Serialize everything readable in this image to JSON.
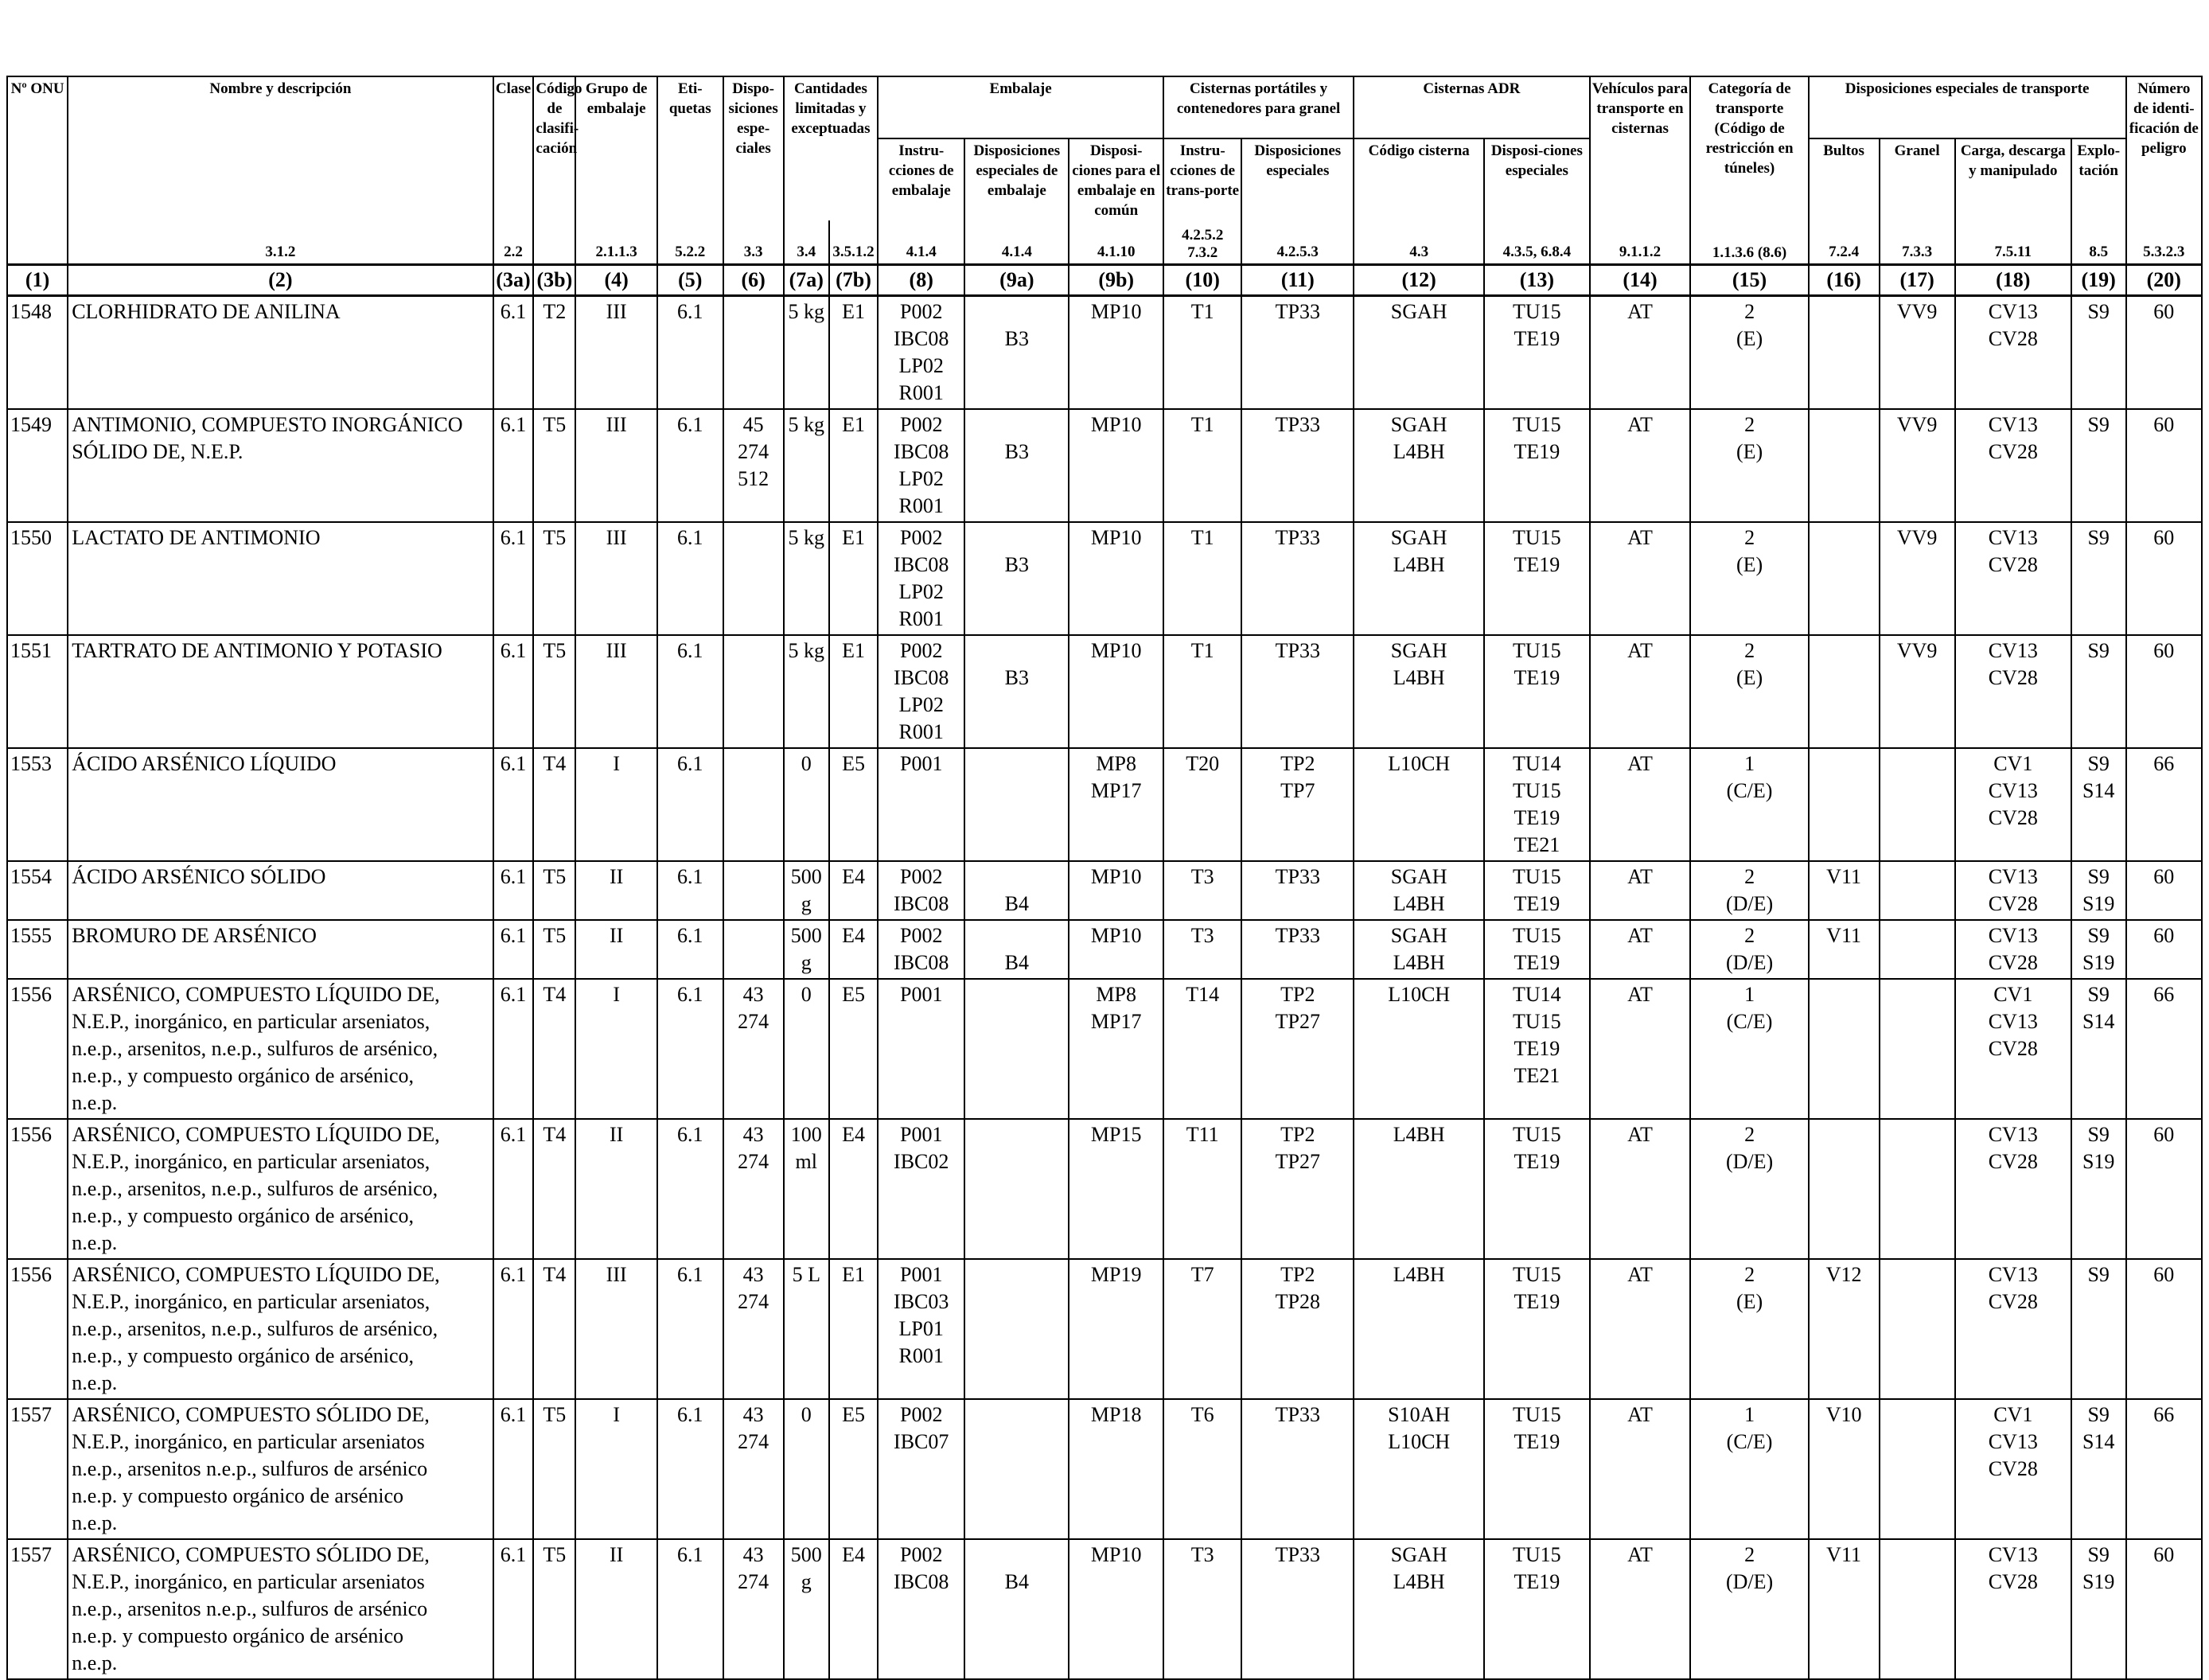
{
  "header": {
    "top": [
      {
        "key": "onu",
        "label": "Nº ONU"
      },
      {
        "key": "name",
        "label": "Nombre y descripción",
        "ref": "3.1.2"
      },
      {
        "key": "clase",
        "label": "Clase",
        "ref": "2.2"
      },
      {
        "key": "codigo",
        "label": "Código de clasifi-cación"
      },
      {
        "key": "grupo",
        "label": "Grupo de embalaje",
        "ref": "2.1.1.3"
      },
      {
        "key": "etiq",
        "label": "Eti-quetas",
        "ref": "5.2.2"
      },
      {
        "key": "disp",
        "label": "Dispo-siciones espe-ciales",
        "ref": "3.3"
      },
      {
        "key": "cant",
        "label": "Cantidades limitadas y exceptuadas"
      },
      {
        "key": "emb",
        "label": "Embalaje"
      },
      {
        "key": "cist",
        "label": "Cisternas portátiles y contenedores para granel"
      },
      {
        "key": "adr",
        "label": "Cisternas ADR"
      },
      {
        "key": "veh",
        "label": "Vehículos para transporte en cisternas",
        "ref": "9.1.1.2"
      },
      {
        "key": "cat",
        "label": "Categoría de transporte (Código de restricción en túneles)",
        "ref": "1.1.3.6 (8.6)"
      },
      {
        "key": "dest",
        "label": "Disposiciones especiales de transporte"
      },
      {
        "key": "num",
        "label": "Número de identi-ficación de peligro",
        "ref": "5.3.2.3"
      }
    ],
    "sub": [
      {
        "label": "",
        "ref": "3.4"
      },
      {
        "label": "",
        "ref": "3.5.1.2"
      },
      {
        "label": "Instru-cciones de embalaje",
        "ref": "4.1.4"
      },
      {
        "label": "Disposiciones especiales de embalaje",
        "ref": "4.1.4"
      },
      {
        "label": "Disposi-ciones para el embalaje en común",
        "ref": "4.1.10"
      },
      {
        "label": "Instru-cciones de trans-porte",
        "ref": "4.2.5.2 7.3.2"
      },
      {
        "label": "Disposiciones especiales",
        "ref": "4.2.5.3"
      },
      {
        "label": "Código cisterna",
        "ref": "4.3"
      },
      {
        "label": "Disposi-ciones especiales",
        "ref": "4.3.5, 6.8.4"
      },
      {
        "label": "Bultos",
        "ref": "7.2.4"
      },
      {
        "label": "Granel",
        "ref": "7.3.3"
      },
      {
        "label": "Carga, descarga y manipulado",
        "ref": "7.5.11"
      },
      {
        "label": "Explo-tación",
        "ref": "8.5"
      }
    ],
    "colnums": [
      "(1)",
      "(2)",
      "(3a)",
      "(3b)",
      "(4)",
      "(5)",
      "(6)",
      "(7a)",
      "(7b)",
      "(8)",
      "(9a)",
      "(9b)",
      "(10)",
      "(11)",
      "(12)",
      "(13)",
      "(14)",
      "(15)",
      "(16)",
      "(17)",
      "(18)",
      "(19)",
      "(20)"
    ]
  },
  "rows": [
    {
      "c": [
        "1548",
        [
          "CLORHIDRATO DE ANILINA"
        ],
        "6.1",
        "T2",
        "III",
        "6.1",
        "",
        "5 kg",
        "E1",
        [
          "P002",
          "IBC08",
          "LP02",
          "R001"
        ],
        [
          "",
          "B3"
        ],
        "MP10",
        "T1",
        "TP33",
        "SGAH",
        [
          "TU15",
          "TE19"
        ],
        "AT",
        [
          "2",
          "(E)"
        ],
        "",
        "VV9",
        [
          "CV13",
          "CV28"
        ],
        "S9",
        "60"
      ]
    },
    {
      "c": [
        "1549",
        [
          "ANTIMONIO, COMPUESTO INORGÁNICO SÓLIDO DE, N.E.P."
        ],
        "6.1",
        "T5",
        "III",
        "6.1",
        [
          "45",
          "274",
          "512"
        ],
        "5 kg",
        "E1",
        [
          "P002",
          "IBC08",
          "LP02",
          "R001"
        ],
        [
          "",
          "B3"
        ],
        "MP10",
        "T1",
        "TP33",
        [
          "SGAH",
          "L4BH"
        ],
        [
          "TU15",
          "TE19"
        ],
        "AT",
        [
          "2",
          "(E)"
        ],
        "",
        "VV9",
        [
          "CV13",
          "CV28"
        ],
        "S9",
        "60"
      ]
    },
    {
      "c": [
        "1550",
        [
          "LACTATO DE ANTIMONIO"
        ],
        "6.1",
        "T5",
        "III",
        "6.1",
        "",
        "5 kg",
        "E1",
        [
          "P002",
          "IBC08",
          "LP02",
          "R001"
        ],
        [
          "",
          "B3"
        ],
        "MP10",
        "T1",
        "TP33",
        [
          "SGAH",
          "L4BH"
        ],
        [
          "TU15",
          "TE19"
        ],
        "AT",
        [
          "2",
          "(E)"
        ],
        "",
        "VV9",
        [
          "CV13",
          "CV28"
        ],
        "S9",
        "60"
      ]
    },
    {
      "c": [
        "1551",
        [
          "TARTRATO DE ANTIMONIO Y POTASIO"
        ],
        "6.1",
        "T5",
        "III",
        "6.1",
        "",
        "5 kg",
        "E1",
        [
          "P002",
          "IBC08",
          "LP02",
          "R001"
        ],
        [
          "",
          "B3"
        ],
        "MP10",
        "T1",
        "TP33",
        [
          "SGAH",
          "L4BH"
        ],
        [
          "TU15",
          "TE19"
        ],
        "AT",
        [
          "2",
          "(E)"
        ],
        "",
        "VV9",
        [
          "CV13",
          "CV28"
        ],
        "S9",
        "60"
      ]
    },
    {
      "c": [
        "1553",
        [
          "ÁCIDO ARSÉNICO LÍQUIDO"
        ],
        "6.1",
        "T4",
        "I",
        "6.1",
        "",
        "0",
        "E5",
        "P001",
        "",
        [
          "MP8",
          "MP17"
        ],
        "T20",
        [
          "TP2",
          "TP7"
        ],
        "L10CH",
        [
          "TU14",
          "TU15",
          "TE19",
          "TE21"
        ],
        "AT",
        [
          "1",
          "(C/E)"
        ],
        "",
        "",
        [
          "CV1",
          "CV13",
          "CV28"
        ],
        [
          "S9",
          "S14"
        ],
        "66"
      ]
    },
    {
      "c": [
        "1554",
        [
          "ÁCIDO ARSÉNICO SÓLIDO"
        ],
        "6.1",
        "T5",
        "II",
        "6.1",
        "",
        [
          "500",
          "g"
        ],
        "E4",
        [
          "P002",
          "IBC08"
        ],
        [
          "",
          "B4"
        ],
        "MP10",
        "T3",
        "TP33",
        [
          "SGAH",
          "L4BH"
        ],
        [
          "TU15",
          "TE19"
        ],
        "AT",
        [
          "2",
          "(D/E)"
        ],
        "V11",
        "",
        [
          "CV13",
          "CV28"
        ],
        [
          "S9",
          "S19"
        ],
        "60"
      ]
    },
    {
      "c": [
        "1555",
        [
          "BROMURO DE ARSÉNICO"
        ],
        "6.1",
        "T5",
        "II",
        "6.1",
        "",
        [
          "500",
          "g"
        ],
        "E4",
        [
          "P002",
          "IBC08"
        ],
        [
          "",
          "B4"
        ],
        "MP10",
        "T3",
        "TP33",
        [
          "SGAH",
          "L4BH"
        ],
        [
          "TU15",
          "TE19"
        ],
        "AT",
        [
          "2",
          "(D/E)"
        ],
        "V11",
        "",
        [
          "CV13",
          "CV28"
        ],
        [
          "S9",
          "S19"
        ],
        "60"
      ]
    },
    {
      "c": [
        "1556",
        [
          "ARSÉNICO, COMPUESTO LÍQUIDO DE,",
          "N.E.P., inorgánico, en particular arseniatos,",
          "n.e.p., arsenitos, n.e.p., sulfuros de arsénico,",
          "n.e.p., y compuesto orgánico de arsénico,",
          "n.e.p."
        ],
        "6.1",
        "T4",
        "I",
        "6.1",
        [
          "43",
          "274"
        ],
        "0",
        "E5",
        "P001",
        "",
        [
          "MP8",
          "MP17"
        ],
        "T14",
        [
          "TP2",
          "TP27"
        ],
        "L10CH",
        [
          "TU14",
          "TU15",
          "TE19",
          "TE21"
        ],
        "AT",
        [
          "1",
          "(C/E)"
        ],
        "",
        "",
        [
          "CV1",
          "CV13",
          "CV28"
        ],
        [
          "S9",
          "S14"
        ],
        "66"
      ]
    },
    {
      "c": [
        "1556",
        [
          "ARSÉNICO, COMPUESTO LÍQUIDO DE,",
          "N.E.P., inorgánico, en particular arseniatos,",
          "n.e.p., arsenitos, n.e.p., sulfuros de arsénico,",
          "n.e.p., y compuesto orgánico de arsénico,",
          "n.e.p."
        ],
        "6.1",
        "T4",
        "II",
        "6.1",
        [
          "43",
          "274"
        ],
        [
          "100",
          "ml"
        ],
        "E4",
        [
          "P001",
          "IBC02"
        ],
        "",
        "MP15",
        "T11",
        [
          "TP2",
          "TP27"
        ],
        "L4BH",
        [
          "TU15",
          "TE19"
        ],
        "AT",
        [
          "2",
          "(D/E)"
        ],
        "",
        "",
        [
          "CV13",
          "CV28"
        ],
        [
          "S9",
          "S19"
        ],
        "60"
      ]
    },
    {
      "c": [
        "1556",
        [
          "ARSÉNICO, COMPUESTO LÍQUIDO DE,",
          "N.E.P., inorgánico, en particular arseniatos,",
          "n.e.p., arsenitos, n.e.p., sulfuros de arsénico,",
          "n.e.p., y compuesto orgánico de arsénico,",
          "n.e.p."
        ],
        "6.1",
        "T4",
        "III",
        "6.1",
        [
          "43",
          "274"
        ],
        "5 L",
        "E1",
        [
          "P001",
          "IBC03",
          "LP01",
          "R001"
        ],
        "",
        "MP19",
        "T7",
        [
          "TP2",
          "TP28"
        ],
        "L4BH",
        [
          "TU15",
          "TE19"
        ],
        "AT",
        [
          "2",
          "(E)"
        ],
        "V12",
        "",
        [
          "CV13",
          "CV28"
        ],
        "S9",
        "60"
      ]
    },
    {
      "c": [
        "1557",
        [
          "ARSÉNICO, COMPUESTO SÓLIDO DE,",
          "N.E.P., inorgánico, en particular arseniatos",
          "n.e.p., arsenitos n.e.p., sulfuros de arsénico",
          "n.e.p. y compuesto orgánico de arsénico",
          "n.e.p."
        ],
        "6.1",
        "T5",
        "I",
        "6.1",
        [
          "43",
          "274"
        ],
        "0",
        "E5",
        [
          "P002",
          "IBC07"
        ],
        "",
        "MP18",
        "T6",
        "TP33",
        [
          "S10AH",
          "L10CH"
        ],
        [
          "TU15",
          "TE19"
        ],
        "AT",
        [
          "1",
          "(C/E)"
        ],
        "V10",
        "",
        [
          "CV1",
          "CV13",
          "CV28"
        ],
        [
          "S9",
          "S14"
        ],
        "66"
      ]
    },
    {
      "c": [
        "1557",
        [
          "ARSÉNICO, COMPUESTO SÓLIDO DE,",
          "N.E.P., inorgánico, en particular arseniatos",
          "n.e.p., arsenitos n.e.p., sulfuros de arsénico",
          "n.e.p. y compuesto orgánico de arsénico",
          "n.e.p."
        ],
        "6.1",
        "T5",
        "II",
        "6.1",
        [
          "43",
          "274"
        ],
        [
          "500",
          "g"
        ],
        "E4",
        [
          "P002",
          "IBC08"
        ],
        [
          "",
          "B4"
        ],
        "MP10",
        "T3",
        "TP33",
        [
          "SGAH",
          "L4BH"
        ],
        [
          "TU15",
          "TE19"
        ],
        "AT",
        [
          "2",
          "(D/E)"
        ],
        "V11",
        "",
        [
          "CV13",
          "CV28"
        ],
        [
          "S9",
          "S19"
        ],
        "60"
      ]
    }
  ]
}
